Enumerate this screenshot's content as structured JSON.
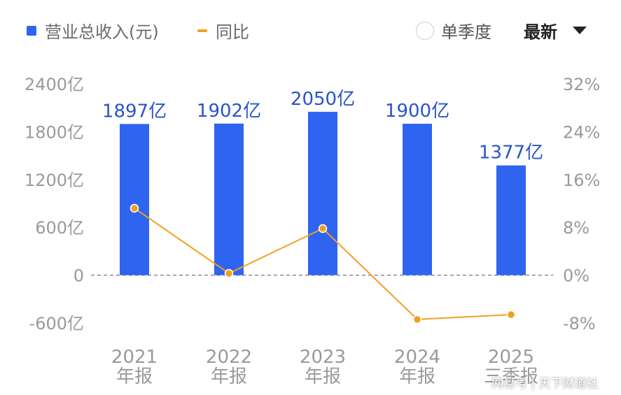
{
  "legend": {
    "revenue_label": "营业总收入(元)",
    "yoy_label": "同比"
  },
  "controls": {
    "single_quarter_label": "单季度",
    "period_select": "最新"
  },
  "colors": {
    "bar": "#2f64f0",
    "line": "#f0a020",
    "bar_label": "#2a55c8",
    "axis_text": "#9a9a9a"
  },
  "watermark": "网易号 | 天下财道社",
  "chart_data": {
    "type": "bar",
    "categories": [
      "2021 年报",
      "2022 年报",
      "2023 年报",
      "2024 年报",
      "2025 三季报"
    ],
    "category_lines": [
      [
        "2021",
        "年报"
      ],
      [
        "2022",
        "年报"
      ],
      [
        "2023",
        "年报"
      ],
      [
        "2024",
        "年报"
      ],
      [
        "2025",
        "三季报"
      ]
    ],
    "series": [
      {
        "name": "营业总收入(元)",
        "type": "bar",
        "axis": "left",
        "values": [
          1897,
          1902,
          2050,
          1900,
          1377
        ],
        "labels": [
          "1897亿",
          "1902亿",
          "2050亿",
          "1900亿",
          "1377亿"
        ]
      },
      {
        "name": "同比",
        "type": "line",
        "axis": "right",
        "values": [
          11.2,
          0.3,
          7.8,
          -7.4,
          -6.6
        ]
      }
    ],
    "y_left": {
      "ticks": [
        2400,
        1800,
        1200,
        600,
        0,
        -600
      ],
      "tick_labels": [
        "2400亿",
        "1800亿",
        "1200亿",
        "600亿",
        "0",
        "-600亿"
      ],
      "range": [
        -600,
        2400
      ]
    },
    "y_right": {
      "ticks": [
        32,
        24,
        16,
        8,
        0,
        -8
      ],
      "tick_labels": [
        "32%",
        "24%",
        "16%",
        "8%",
        "0%",
        "-8%"
      ],
      "range": [
        -8,
        32
      ]
    },
    "zero_line": "dashed",
    "legend_position": "top-left"
  }
}
